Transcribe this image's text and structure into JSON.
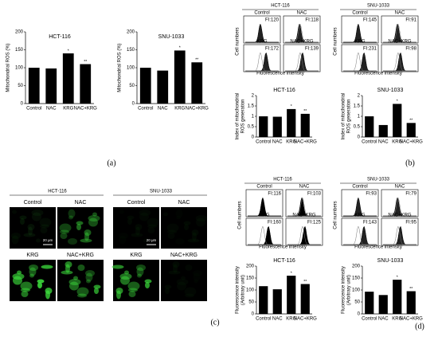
{
  "chart_data": [
    {
      "type": "bar",
      "title": "HCT-116",
      "ylabel": [
        "Mitochondrial ROS (%)"
      ],
      "categories": [
        "Control",
        "NAC",
        "KRG",
        "NAC+KRG"
      ],
      "values": [
        100,
        98,
        140,
        110
      ],
      "annotations": [
        null,
        null,
        "*",
        "**"
      ],
      "color": "#000000",
      "ylim": [
        0,
        200
      ],
      "yticks": [
        0,
        50,
        100,
        150,
        200
      ]
    },
    {
      "type": "bar",
      "title": "SNU-1033",
      "ylabel": [
        "Mitochondrial ROS (%)"
      ],
      "categories": [
        "Control",
        "NAC",
        "KRG",
        "NAC+KRG"
      ],
      "values": [
        100,
        92,
        148,
        115
      ],
      "annotations": [
        null,
        null,
        "*",
        "**"
      ],
      "color": "#000000",
      "ylim": [
        0,
        200
      ],
      "yticks": [
        0,
        50,
        100,
        150,
        200
      ]
    },
    {
      "type": "bar",
      "title": "HCT-116",
      "ylabel": [
        "Index of mitochondrial",
        "ROS generation"
      ],
      "categories": [
        "Control",
        "NAC",
        "KRG",
        "NAC+KRG"
      ],
      "values": [
        1,
        0.98,
        1.35,
        1.12
      ],
      "annotations": [
        null,
        null,
        "*",
        "**"
      ],
      "color": "#000000",
      "ylim": [
        0,
        2
      ],
      "yticks": [
        0,
        0.5,
        1,
        1.5,
        2
      ]
    },
    {
      "type": "bar",
      "title": "SNU-1033",
      "ylabel": [
        "Index of mitochondrial",
        "ROS generation"
      ],
      "categories": [
        "Control",
        "NAC",
        "KRG",
        "NAC+KRG"
      ],
      "values": [
        1,
        0.58,
        1.6,
        0.68
      ],
      "annotations": [
        null,
        null,
        "*",
        "**"
      ],
      "color": "#000000",
      "ylim": [
        0,
        2
      ],
      "yticks": [
        0,
        0.5,
        1,
        1.5,
        2
      ]
    },
    {
      "type": "bar",
      "title": "HCT-116",
      "ylabel": [
        "Fluorescence intensity",
        "(Arbitrary unit)"
      ],
      "categories": [
        "Control",
        "NAC",
        "KRG",
        "NAC+KRG"
      ],
      "values": [
        116,
        103,
        160,
        125
      ],
      "annotations": [
        null,
        null,
        "*",
        "**"
      ],
      "color": "#000000",
      "ylim": [
        0,
        200
      ],
      "yticks": [
        0,
        50,
        100,
        150,
        200
      ]
    },
    {
      "type": "bar",
      "title": "SNU-1033",
      "ylabel": [
        "Fluorescence intensity",
        "(Arbitrary unit)"
      ],
      "categories": [
        "Control",
        "NAC",
        "KRG",
        "NAC+KRG"
      ],
      "values": [
        93,
        79,
        143,
        95
      ],
      "annotations": [
        null,
        null,
        "*",
        "**"
      ],
      "color": "#000000",
      "ylim": [
        0,
        200
      ],
      "yticks": [
        0,
        50,
        100,
        150,
        200
      ]
    }
  ],
  "flow_panels": [
    {
      "title": "HCT-116",
      "ylabel": "Cell numbers",
      "xlabel": "Fluorescence intensity",
      "cells": [
        {
          "label": "Control",
          "fi": "FI:120"
        },
        {
          "label": "NAC",
          "fi": "FI:118"
        },
        {
          "label": "KRG",
          "fi": "FI:172"
        },
        {
          "label": "NAC+KRG",
          "fi": "FI:139"
        }
      ]
    },
    {
      "title": "SNU-1033",
      "ylabel": "Cell numbers",
      "xlabel": "Fluorescence intensity",
      "cells": [
        {
          "label": "Control",
          "fi": "FI:145"
        },
        {
          "label": "NAC",
          "fi": "FI:91"
        },
        {
          "label": "KRG",
          "fi": "FI:231"
        },
        {
          "label": "NAC+KRG",
          "fi": "FI:98"
        }
      ]
    },
    {
      "title": "HCT-116",
      "ylabel": "Cell numbers",
      "xlabel": "Fluorescence intensity",
      "cells": [
        {
          "label": "Control",
          "fi": "FI:116"
        },
        {
          "label": "NAC",
          "fi": "FI:103"
        },
        {
          "label": "KRG",
          "fi": "FI:160"
        },
        {
          "label": "NAC+KRG",
          "fi": "FI:125"
        }
      ]
    },
    {
      "title": "SNU-1033",
      "ylabel": "Cell numbers",
      "xlabel": "Fluorescence intensity",
      "cells": [
        {
          "label": "Control",
          "fi": "FI:93"
        },
        {
          "label": "NAC",
          "fi": "FI:79"
        },
        {
          "label": "KRG",
          "fi": "FI:143"
        },
        {
          "label": "NAC+KRG",
          "fi": "FI:95"
        }
      ]
    }
  ],
  "microscopy": [
    {
      "title": "HCT-116",
      "scale": "20 μm",
      "cells": [
        "Control",
        "NAC",
        "KRG",
        "NAC+KRG"
      ]
    },
    {
      "title": "SNU-1033",
      "scale": "20 μm",
      "cells": [
        "Control",
        "NAC",
        "KRG",
        "NAC+KRG"
      ]
    }
  ],
  "panel_labels": [
    "(a)",
    "(b)",
    "(c)",
    "(d)"
  ]
}
